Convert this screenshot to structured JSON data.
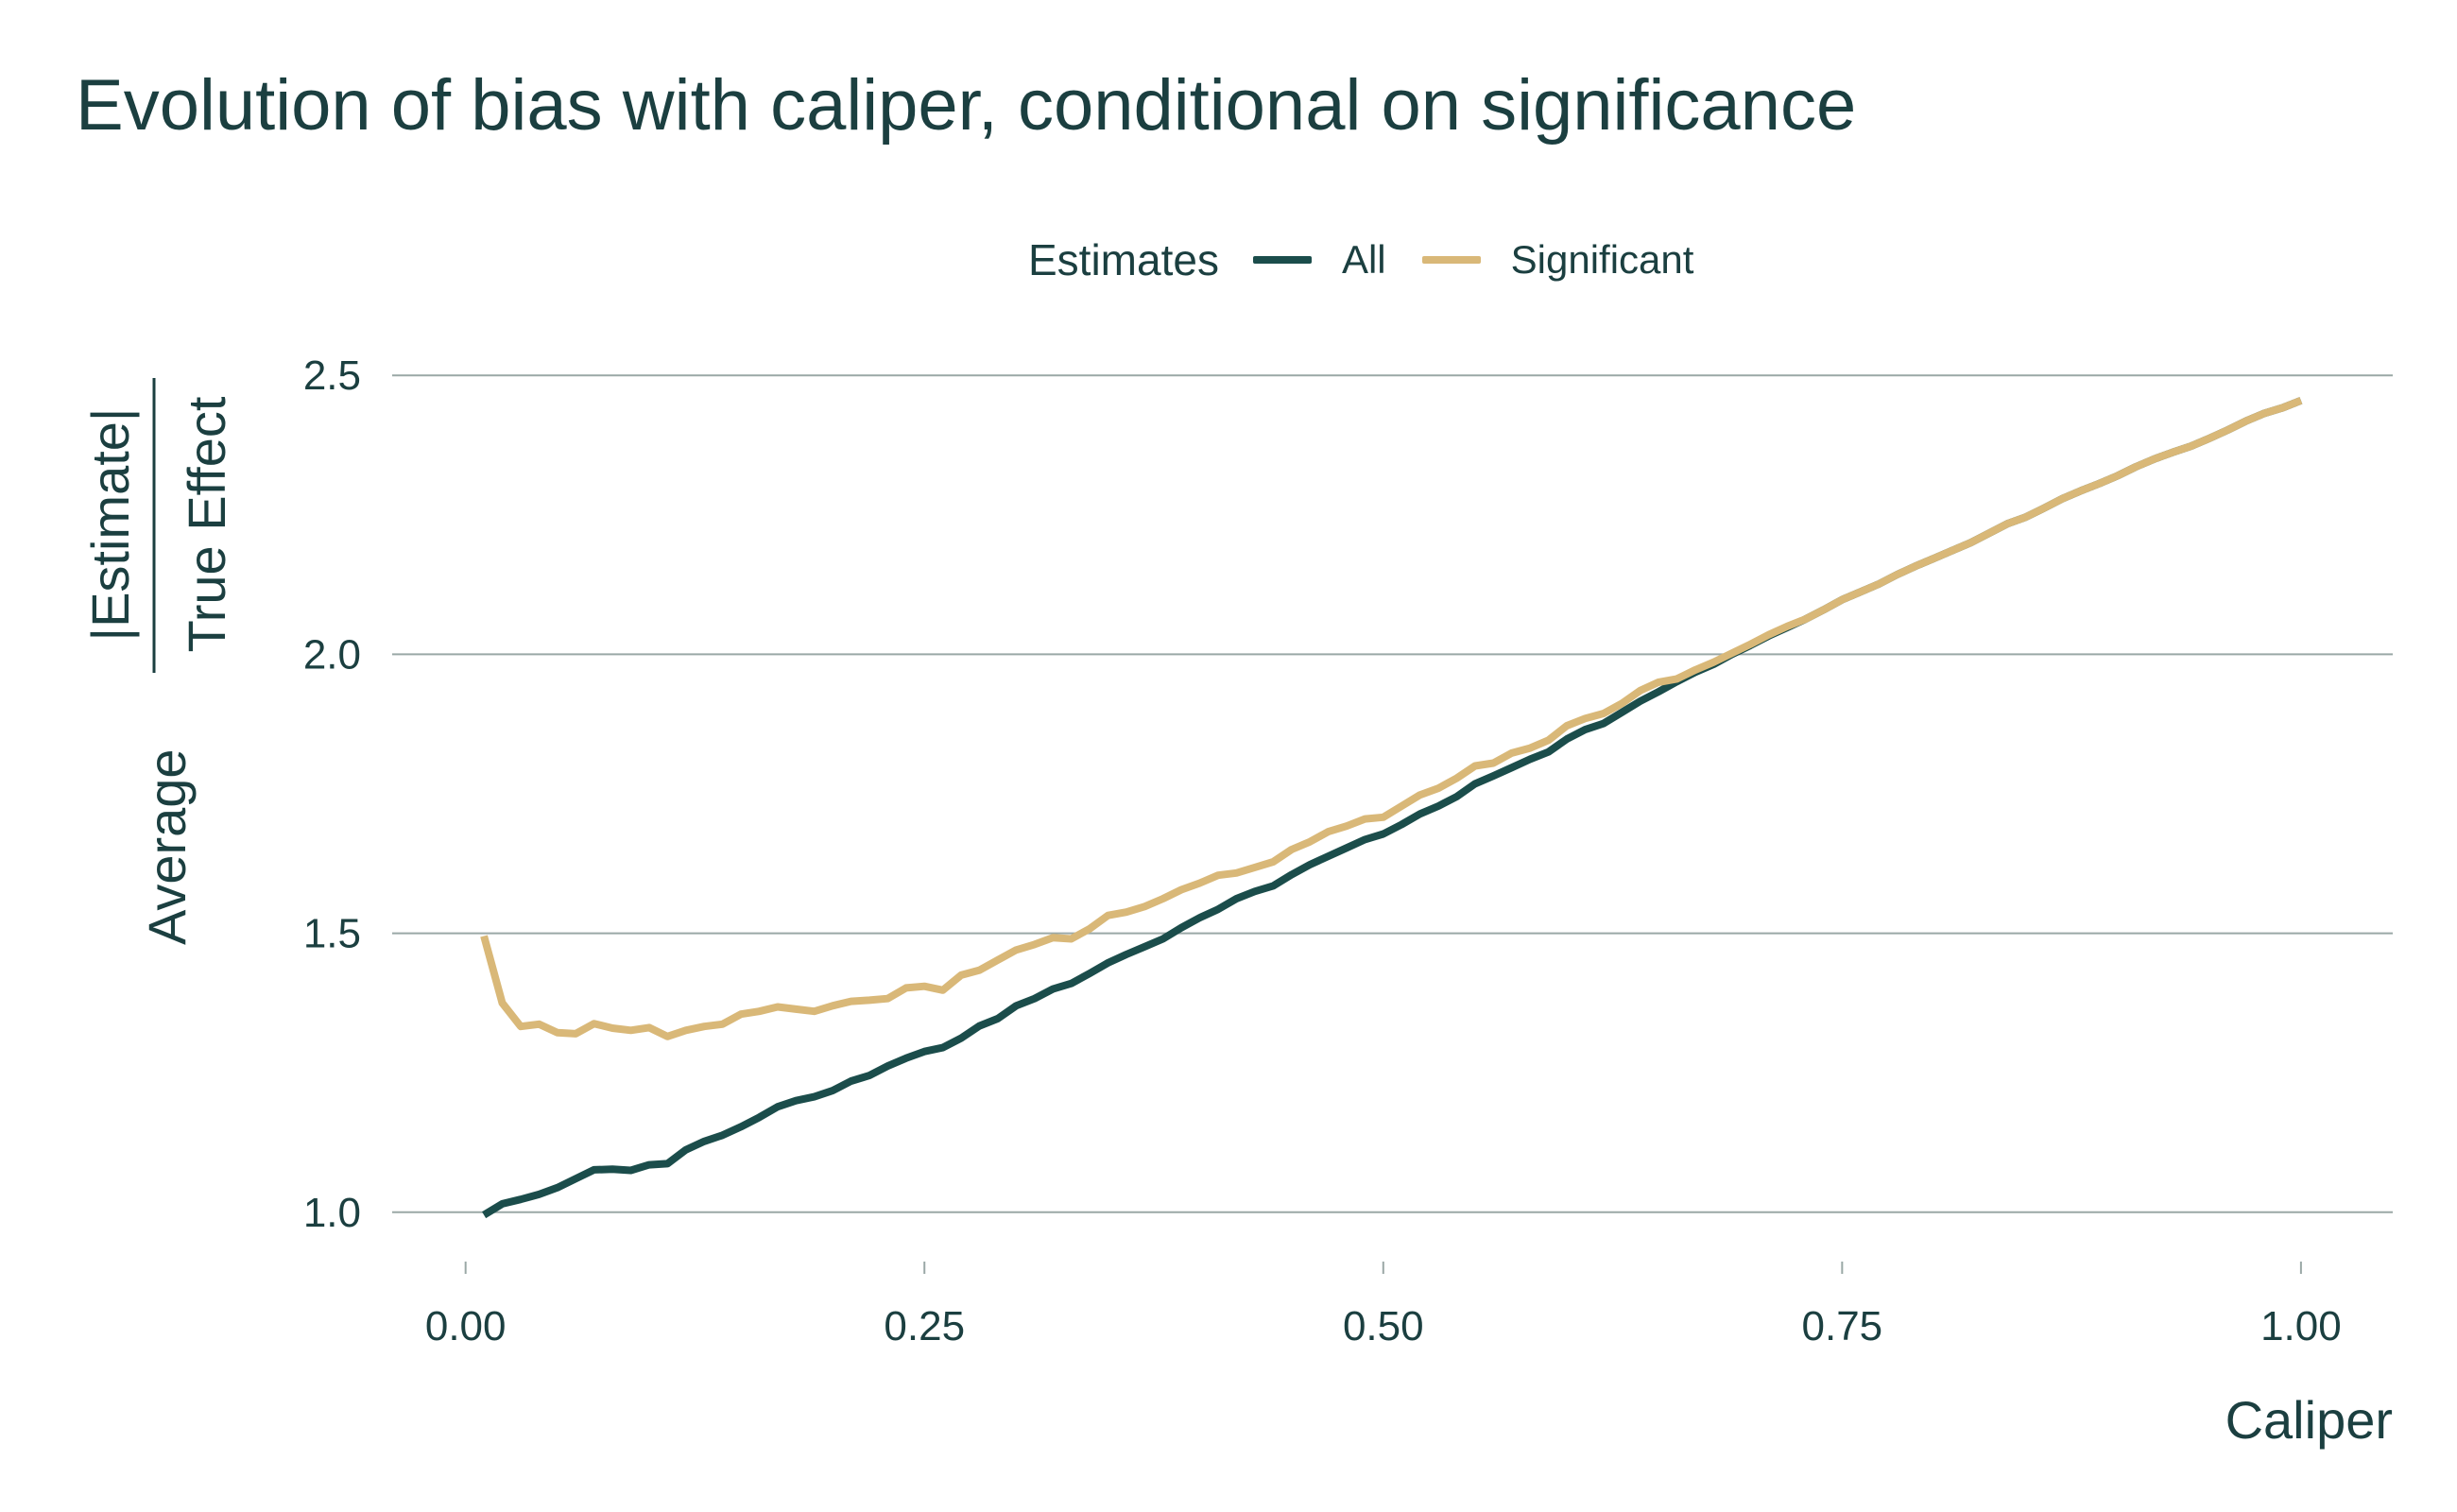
{
  "chart_data": {
    "type": "line",
    "title": "Evolution of bias with caliper, conditional on significance",
    "xlabel": "Caliper",
    "ylabel": {
      "prefix": "Average",
      "numerator": "|Estimate|",
      "denominator": "True Effect"
    },
    "xlim": [
      -0.04,
      1.05
    ],
    "ylim": [
      0.92,
      2.58
    ],
    "x_ticks": [
      0.0,
      0.25,
      0.5,
      0.75,
      1.0
    ],
    "x_tick_labels": [
      "0.00",
      "0.25",
      "0.50",
      "0.75",
      "1.00"
    ],
    "y_ticks": [
      1.0,
      1.5,
      2.0,
      2.5
    ],
    "y_tick_labels": [
      "1.0",
      "1.5",
      "2.0",
      "2.5"
    ],
    "grid": "horizontal",
    "legend": {
      "title": "Estimates",
      "placement": "top"
    },
    "x": [
      0.01,
      0.02,
      0.03,
      0.04,
      0.05,
      0.06,
      0.07,
      0.08,
      0.09,
      0.1,
      0.11,
      0.12,
      0.13,
      0.14,
      0.15,
      0.16,
      0.17,
      0.18,
      0.19,
      0.2,
      0.21,
      0.22,
      0.23,
      0.24,
      0.25,
      0.26,
      0.27,
      0.28,
      0.29,
      0.3,
      0.31,
      0.32,
      0.33,
      0.34,
      0.35,
      0.36,
      0.37,
      0.38,
      0.39,
      0.4,
      0.41,
      0.42,
      0.43,
      0.44,
      0.45,
      0.46,
      0.47,
      0.48,
      0.49,
      0.5,
      0.51,
      0.52,
      0.53,
      0.54,
      0.55,
      0.56,
      0.57,
      0.58,
      0.59,
      0.6,
      0.61,
      0.62,
      0.63,
      0.64,
      0.65,
      0.66,
      0.67,
      0.68,
      0.69,
      0.7,
      0.71,
      0.72,
      0.73,
      0.74,
      0.75,
      0.76,
      0.77,
      0.78,
      0.79,
      0.8,
      0.81,
      0.82,
      0.83,
      0.84,
      0.85,
      0.86,
      0.87,
      0.88,
      0.89,
      0.9,
      0.91,
      0.92,
      0.93,
      0.94,
      0.95,
      0.96,
      0.97,
      0.98,
      0.99,
      1.0
    ],
    "series": [
      {
        "name": "All",
        "color": "#1b4d4b",
        "values": [
          0.995,
          1.015,
          1.023,
          1.032,
          1.044,
          1.06,
          1.076,
          1.077,
          1.075,
          1.085,
          1.087,
          1.112,
          1.127,
          1.138,
          1.153,
          1.17,
          1.189,
          1.2,
          1.207,
          1.218,
          1.235,
          1.245,
          1.262,
          1.276,
          1.288,
          1.295,
          1.312,
          1.334,
          1.347,
          1.37,
          1.383,
          1.4,
          1.41,
          1.428,
          1.447,
          1.462,
          1.476,
          1.49,
          1.51,
          1.528,
          1.543,
          1.562,
          1.575,
          1.585,
          1.605,
          1.623,
          1.638,
          1.653,
          1.668,
          1.678,
          1.695,
          1.714,
          1.728,
          1.745,
          1.768,
          1.782,
          1.797,
          1.812,
          1.825,
          1.848,
          1.865,
          1.876,
          1.896,
          1.916,
          1.933,
          1.951,
          1.968,
          1.982,
          2.0,
          2.016,
          2.033,
          2.048,
          2.063,
          2.08,
          2.098,
          2.112,
          2.126,
          2.143,
          2.158,
          2.172,
          2.186,
          2.2,
          2.217,
          2.234,
          2.246,
          2.262,
          2.279,
          2.293,
          2.306,
          2.32,
          2.336,
          2.35,
          2.362,
          2.373,
          2.387,
          2.402,
          2.418,
          2.432,
          2.442,
          2.455
        ]
      },
      {
        "name": "Significant",
        "color": "#d9b878",
        "values": [
          1.495,
          1.375,
          1.333,
          1.337,
          1.322,
          1.32,
          1.338,
          1.33,
          1.326,
          1.331,
          1.315,
          1.326,
          1.333,
          1.337,
          1.355,
          1.36,
          1.368,
          1.364,
          1.36,
          1.37,
          1.378,
          1.38,
          1.383,
          1.402,
          1.405,
          1.398,
          1.425,
          1.434,
          1.452,
          1.47,
          1.48,
          1.492,
          1.49,
          1.508,
          1.532,
          1.538,
          1.548,
          1.562,
          1.578,
          1.59,
          1.604,
          1.608,
          1.618,
          1.628,
          1.65,
          1.664,
          1.682,
          1.692,
          1.705,
          1.708,
          1.728,
          1.748,
          1.76,
          1.778,
          1.8,
          1.805,
          1.823,
          1.832,
          1.846,
          1.872,
          1.885,
          1.894,
          1.912,
          1.935,
          1.95,
          1.956,
          1.972,
          1.986,
          2.002,
          2.018,
          2.035,
          2.05,
          2.063,
          2.08,
          2.098,
          2.112,
          2.126,
          2.143,
          2.158,
          2.172,
          2.186,
          2.2,
          2.217,
          2.234,
          2.246,
          2.262,
          2.279,
          2.293,
          2.306,
          2.32,
          2.336,
          2.35,
          2.362,
          2.373,
          2.387,
          2.402,
          2.418,
          2.432,
          2.442,
          2.455
        ]
      }
    ]
  }
}
